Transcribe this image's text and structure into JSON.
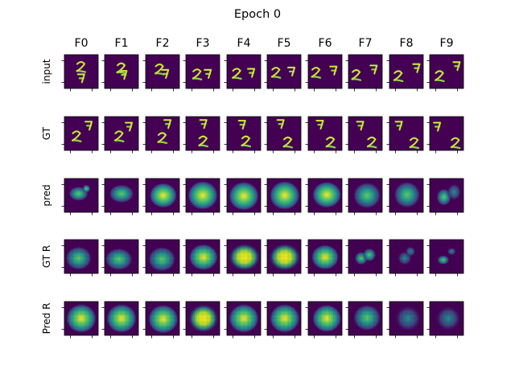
{
  "chart_data": {
    "type": "heatmap",
    "title": "Epoch 0",
    "columns": [
      "F0",
      "F1",
      "F2",
      "F3",
      "F4",
      "F5",
      "F6",
      "F7",
      "F8",
      "F9"
    ],
    "rows": [
      "input",
      "GT",
      "pred",
      "GT R",
      "Pred R"
    ],
    "colormap": "viridis",
    "grid": false,
    "panels": {
      "input": "two handwritten digits '2' and '7' (moving MNIST frames)",
      "GT": "two handwritten digits '7' and '2' (moving MNIST frames)",
      "pred": "blurry blob predictions",
      "GT R": "blurry blob reconstructions",
      "Pred R": "blurry rectangular blob reconstructions"
    }
  },
  "colors": {
    "background": "#440154",
    "low": "#3b528b",
    "mid": "#21918c",
    "high": "#5ec962",
    "peak": "#fde725"
  }
}
